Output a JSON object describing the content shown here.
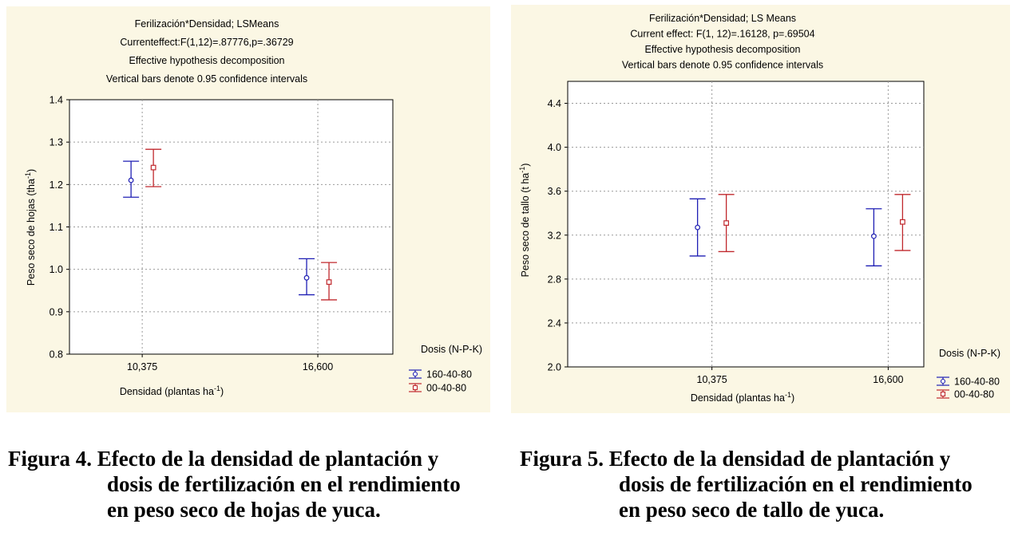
{
  "charts": {
    "left": {
      "background": "#fbf7e4",
      "title_lines": [
        "Ferilización*Densidad; LSMeans",
        "Currenteffect:F(1,12)=.87776,p=.36729",
        "Effective hypothesis decomposition",
        "Vertical bars denote 0.95 confidence intervals"
      ],
      "xlabel": "Densidad (plantas ha",
      "xlabel_sup": "-1",
      "xlabel_close": ")",
      "ylabel": "Peso seco de hojas (tha",
      "ylabel_sup": "-1",
      "ylabel_close": ")",
      "legend_title": "Dosis (N-P-K)"
    },
    "right": {
      "background": "#fbf7e4",
      "title_lines": [
        "Ferilización*Densidad; LS Means",
        "Current effect: F(1, 12)=.16128, p=.69504",
        "Effective hypothesis decomposition",
        "Vertical bars denote 0.95 confidence intervals"
      ],
      "xlabel": "Densidad (plantas ha",
      "xlabel_sup": "-1",
      "xlabel_close": ")",
      "ylabel": "Peso seco de tallo (t ha",
      "ylabel_sup": "-1",
      "ylabel_close": ")",
      "legend_title": "Dosis (N-P-K)"
    }
  },
  "chart_data": [
    {
      "type": "scatter",
      "title": "Ferilización*Densidad; LSMeans",
      "xlabel": "Densidad (plantas ha-1)",
      "ylabel": "Peso seco de hojas (tha-1)",
      "categories": [
        "10,375",
        "16,600"
      ],
      "ylim": [
        0.8,
        1.4
      ],
      "yticks": [
        "0.8",
        "0.9",
        "1.0",
        "1.1",
        "1.2",
        "1.3",
        "1.4"
      ],
      "grid": true,
      "legend_position": "bottom-right",
      "series": [
        {
          "name": "160-40-80",
          "color": "#1f1fb4",
          "marker": "circle",
          "values": [
            1.21,
            0.98
          ],
          "ci_low": [
            1.17,
            0.94
          ],
          "ci_high": [
            1.255,
            1.025
          ]
        },
        {
          "name": "00-40-80",
          "color": "#c0282d",
          "marker": "square",
          "values": [
            1.24,
            0.97
          ],
          "ci_low": [
            1.195,
            0.928
          ],
          "ci_high": [
            1.283,
            1.016
          ]
        }
      ]
    },
    {
      "type": "scatter",
      "title": "Ferilización*Densidad; LS Means",
      "xlabel": "Densidad (plantas ha-1)",
      "ylabel": "Peso seco de tallo (t ha-1)",
      "categories": [
        "10,375",
        "16,600"
      ],
      "ylim": [
        2.0,
        4.6
      ],
      "yticks": [
        "2.0",
        "2.4",
        "2.8",
        "3.2",
        "3.6",
        "4.0",
        "4.4"
      ],
      "grid": true,
      "legend_position": "bottom-right",
      "series": [
        {
          "name": "160-40-80",
          "color": "#1f1fb4",
          "marker": "circle",
          "values": [
            3.27,
            3.19
          ],
          "ci_low": [
            3.01,
            2.92
          ],
          "ci_high": [
            3.53,
            3.44
          ]
        },
        {
          "name": "00-40-80",
          "color": "#c0282d",
          "marker": "square",
          "values": [
            3.31,
            3.32
          ],
          "ci_low": [
            3.05,
            3.06
          ],
          "ci_high": [
            3.57,
            3.57
          ]
        }
      ]
    }
  ],
  "captions": {
    "left": {
      "line1": "Figura 4. Efecto de la densidad de plantación y",
      "line2": "dosis de fertilización en el rendimiento",
      "line3": "en peso seco de hojas de yuca."
    },
    "right": {
      "line1": "Figura 5. Efecto de la densidad de plantación y",
      "line2": "dosis de fertilización en el rendimiento",
      "line3": "en peso seco de tallo de yuca."
    }
  }
}
